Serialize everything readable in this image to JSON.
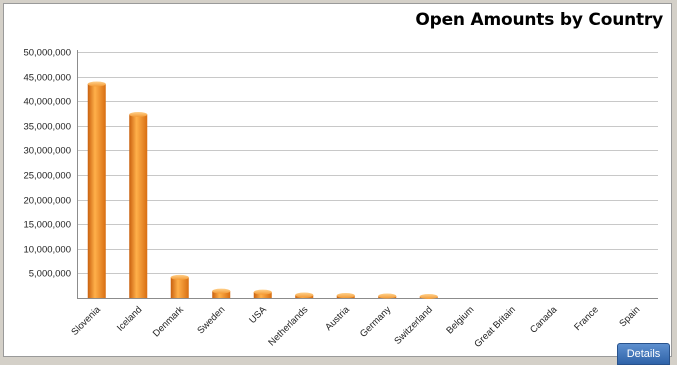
{
  "chart_data": {
    "type": "bar",
    "title": "Open Amounts by Country",
    "xlabel": "",
    "ylabel": "",
    "ylim": [
      0,
      50000000
    ],
    "yticks": [
      0,
      5000000,
      10000000,
      15000000,
      20000000,
      25000000,
      30000000,
      35000000,
      40000000,
      45000000,
      50000000
    ],
    "ytick_labels": [
      "",
      "5,000,000",
      "10,000,000",
      "15,000,000",
      "20,000,000",
      "25,000,000",
      "30,000,000",
      "35,000,000",
      "40,000,000",
      "45,000,000",
      "50,000,000"
    ],
    "categories": [
      "Slovenia",
      "Iceland",
      "Denmark",
      "Sweden",
      "USA",
      "Netherlands",
      "Austria",
      "Germany",
      "Switzerland",
      "Belgium",
      "Great Britain",
      "Canada",
      "France",
      "Spain"
    ],
    "values": [
      43500000,
      37300000,
      4200000,
      1400000,
      1200000,
      600000,
      500000,
      400000,
      300000,
      0,
      0,
      0,
      0,
      0
    ],
    "grid": true,
    "legend": "none",
    "bar_color": "#f08a1e"
  },
  "controls": {
    "details_label": "Details"
  }
}
